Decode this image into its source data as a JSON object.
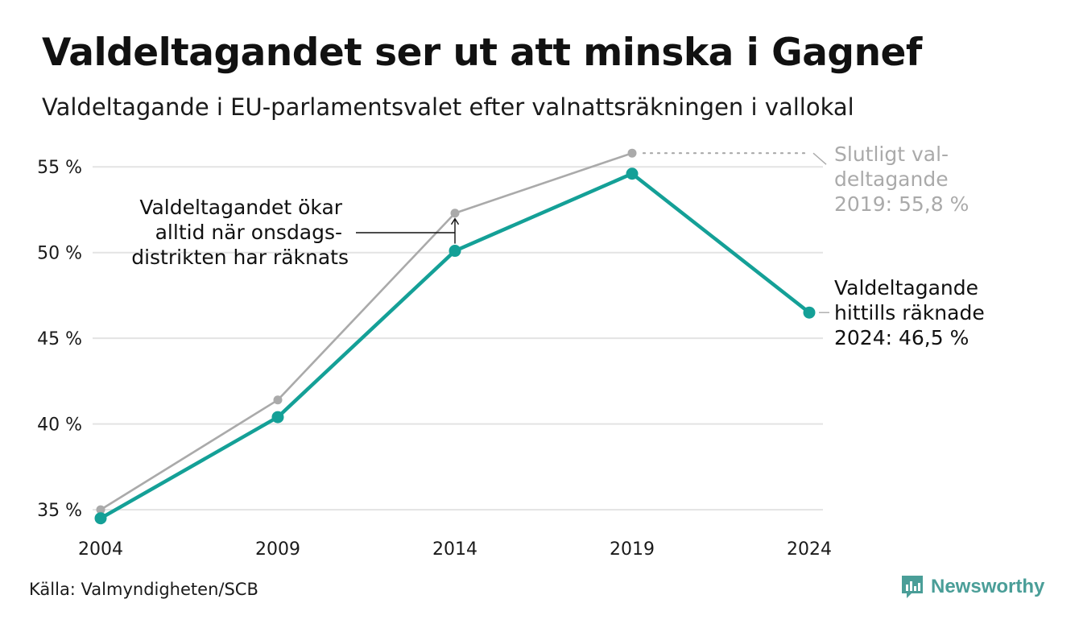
{
  "header": {
    "title": "Valdeltagandet ser ut att minska i Gagnef",
    "subtitle": "Valdeltagande i EU-parlamentsvalet efter valnattsräkningen i vallokal"
  },
  "footer": {
    "source": "Källa: Valmyndigheten/SCB",
    "brand": "Newsworthy"
  },
  "chart_data": {
    "type": "line",
    "categories": [
      "2004",
      "2009",
      "2014",
      "2019",
      "2024"
    ],
    "x": [
      2004,
      2009,
      2014,
      2019,
      2024
    ],
    "x_tick_labels": [
      "2004",
      "2009",
      "2014",
      "2019",
      "2024"
    ],
    "y_ticks": [
      35,
      40,
      45,
      50,
      55
    ],
    "y_tick_labels": [
      "35 %",
      "40 %",
      "45 %",
      "50 %",
      "55 %"
    ],
    "ylim": [
      33.5,
      57.5
    ],
    "grid": true,
    "series": [
      {
        "color": "#aaaaaa",
        "values": [
          35.0,
          41.4,
          52.3,
          55.8,
          null
        ]
      },
      {
        "color": "#14a097",
        "values": [
          34.5,
          40.4,
          50.1,
          54.6,
          46.5
        ]
      }
    ],
    "annotations": {
      "final_turnout": {
        "lines": [
          "Slutligt val-",
          "deltagande",
          "2019: 55,8 %"
        ],
        "color": "#aaaaaa"
      },
      "counted_so_far": {
        "lines": [
          "Valdeltagande",
          "hittills räknade",
          "2024: 46,5 %"
        ],
        "color": "#111111"
      },
      "increase_note": {
        "lines": [
          "Valdeltagandet ökar",
          "alltid när onsdags-",
          "distrikten har räknats"
        ],
        "color": "#111111"
      }
    }
  }
}
